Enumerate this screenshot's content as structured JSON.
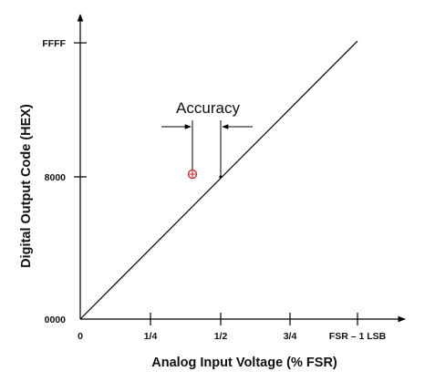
{
  "diagram": {
    "x_axis": {
      "title": "Analog Input Voltage (% FSR)",
      "ticks": [
        "0",
        "1/4",
        "1/2",
        "3/4",
        "FSR – 1 LSB"
      ]
    },
    "y_axis": {
      "title": "Digital Output Code (HEX)",
      "ticks": [
        "0000",
        "8000",
        "FFFF"
      ]
    },
    "callout": {
      "label": "Accuracy"
    },
    "colors": {
      "line": "#000000",
      "marker": "#cc2222"
    }
  }
}
